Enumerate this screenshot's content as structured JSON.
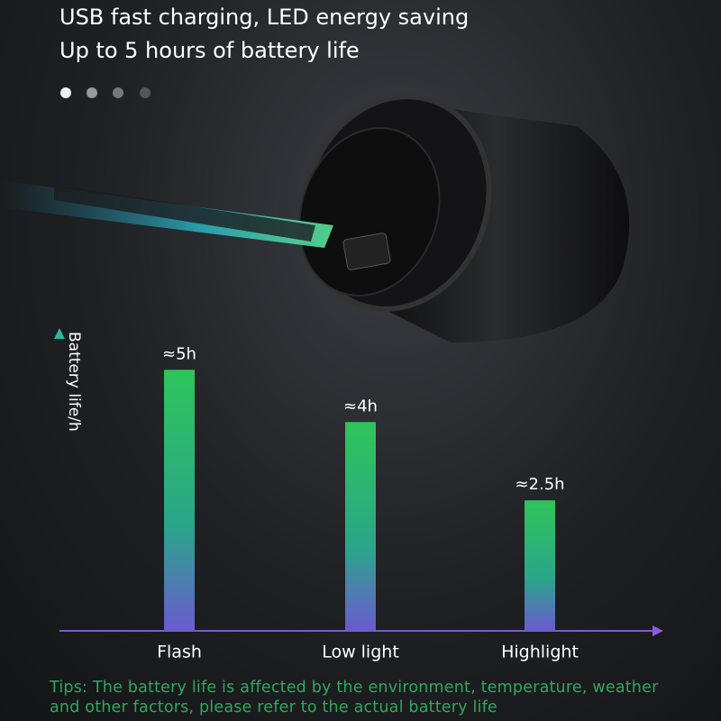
{
  "chart_data": {
    "type": "bar",
    "title": "USB fast charging, LED energy saving",
    "subtitle": "Up to 5 hours of battery life",
    "ylabel": "Battery life/h",
    "categories": [
      "Flash",
      "Low light",
      "Highlight"
    ],
    "values": [
      5,
      4,
      2.5
    ],
    "value_labels": [
      "≈5h",
      "≈4h",
      "≈2.5h"
    ],
    "ylim": [
      0,
      5.8
    ],
    "note": "Tips: The battery life is affected by the environment, temperature, weather and other factors, please refer to the actual battery life"
  }
}
